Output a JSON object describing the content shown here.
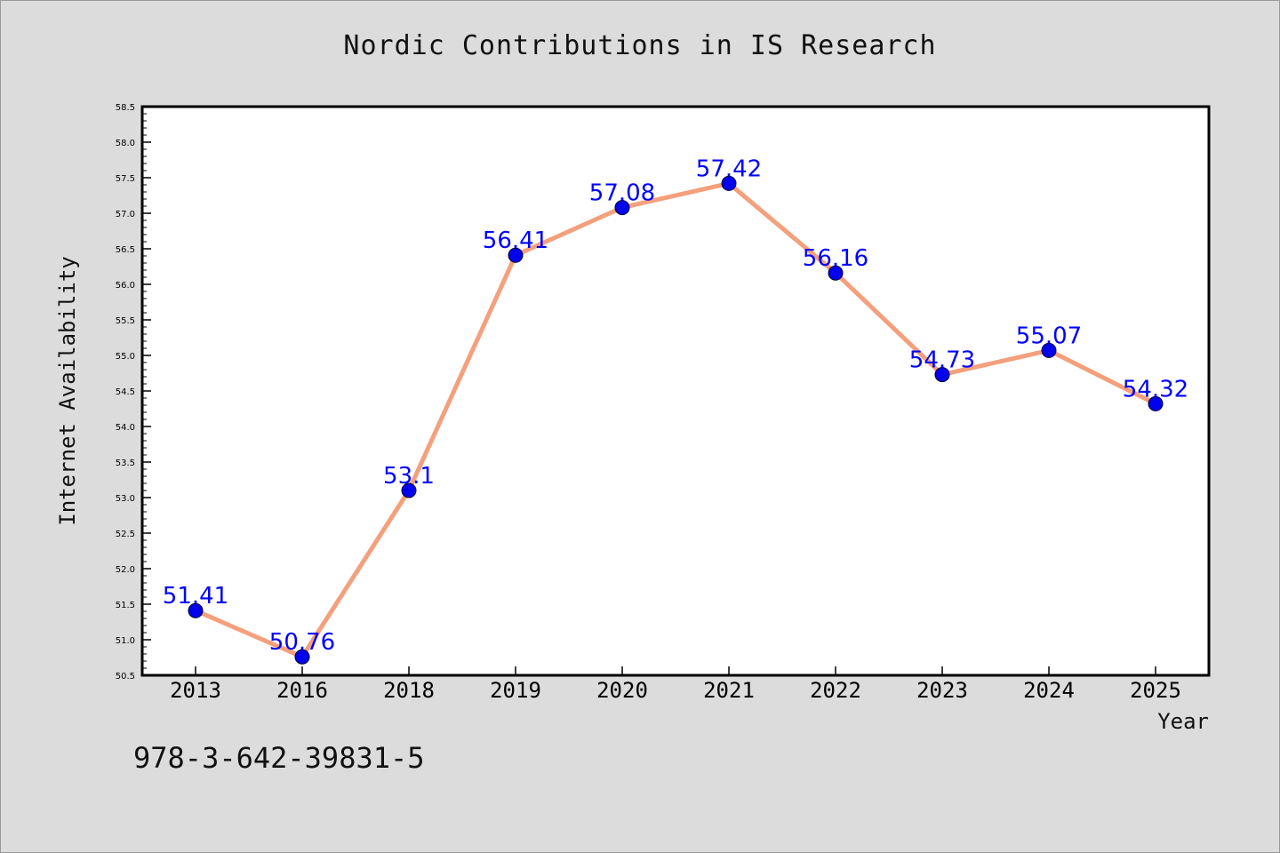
{
  "chart_data": {
    "type": "line",
    "title": "Nordic Contributions in IS Research",
    "xlabel": "Year",
    "ylabel": "Internet Availability",
    "categories": [
      "2013",
      "2016",
      "2018",
      "2019",
      "2020",
      "2021",
      "2022",
      "2023",
      "2024",
      "2025"
    ],
    "values": [
      51.41,
      50.76,
      53.1,
      56.41,
      57.08,
      57.42,
      56.16,
      54.73,
      55.07,
      54.32
    ],
    "data_labels": [
      "51.41",
      "50.76",
      "53.1",
      "56.41",
      "57.08",
      "57.42",
      "56.16",
      "54.73",
      "55.07",
      "54.32"
    ],
    "ylim": [
      50.5,
      58.5
    ],
    "yticks": [
      "50.5",
      "51.0",
      "51.5",
      "52.0",
      "52.5",
      "53.0",
      "53.5",
      "54.0",
      "54.5",
      "55.0",
      "55.5",
      "56.0",
      "56.5",
      "57.0",
      "57.5",
      "58.0",
      "58.5"
    ],
    "grid": false,
    "legend": "none",
    "colors": {
      "line": "#f4a07c",
      "marker": "#0000ee",
      "label": "#0000ff",
      "background": "#dcdcdc",
      "plot_bg": "#ffffff"
    }
  },
  "footer": {
    "code": "978-3-642-39831-5"
  }
}
